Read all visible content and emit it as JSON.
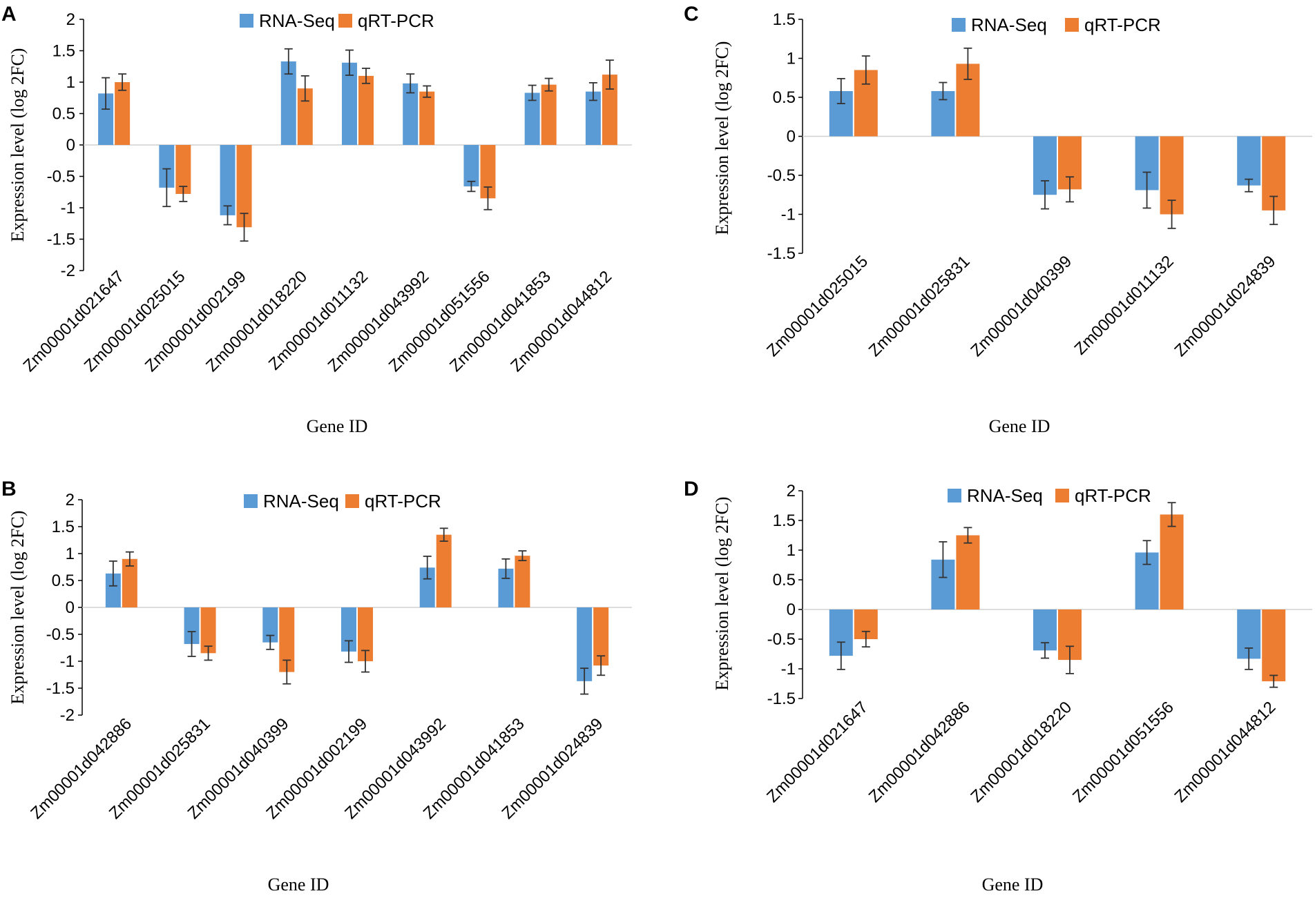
{
  "colors": {
    "rna": "#5b9bd5",
    "qrt": "#ed7d31",
    "zero_line": "#d0d0d0",
    "axis": "#000000",
    "error": "#333333"
  },
  "chart_data": [
    {
      "panel": "A",
      "type": "bar",
      "title": "",
      "xlabel": "Gene ID",
      "ylabel": "Expression level (log 2FC)",
      "ylim": [
        -2,
        2
      ],
      "yticks": [
        "2",
        "1.5",
        "1",
        "0.5",
        "0",
        "-0.5",
        "-1",
        "-1.5",
        "-2"
      ],
      "ytick_values": [
        2,
        1.5,
        1,
        0.5,
        0,
        -0.5,
        -1,
        -1.5,
        -2
      ],
      "categories": [
        "Zm00001d021647",
        "Zm00001d025015",
        "Zm00001d002199",
        "Zm00001d018220",
        "Zm00001d011132",
        "Zm00001d043992",
        "Zm00001d051556",
        "Zm00001d041853",
        "Zm00001d044812"
      ],
      "series": [
        {
          "name": "RNA-Seq",
          "values": [
            0.82,
            -0.68,
            -1.12,
            1.33,
            1.31,
            0.98,
            -0.66,
            0.83,
            0.85
          ],
          "errors": [
            0.25,
            0.3,
            0.15,
            0.2,
            0.2,
            0.15,
            0.08,
            0.12,
            0.14
          ]
        },
        {
          "name": "qRT-PCR",
          "values": [
            1.0,
            -0.78,
            -1.31,
            0.9,
            1.1,
            0.85,
            -0.85,
            0.96,
            1.12
          ],
          "errors": [
            0.13,
            0.12,
            0.22,
            0.2,
            0.12,
            0.09,
            0.18,
            0.1,
            0.23
          ]
        }
      ]
    },
    {
      "panel": "B",
      "type": "bar",
      "title": "",
      "xlabel": "Gene ID",
      "ylabel": "Expression level (log 2FC)",
      "ylim": [
        -2,
        2
      ],
      "yticks": [
        "2",
        "1.5",
        "1",
        "0.5",
        "0",
        "-0.5",
        "-1",
        "-1.5",
        "-2"
      ],
      "ytick_values": [
        2,
        1.5,
        1,
        0.5,
        0,
        -0.5,
        -1,
        -1.5,
        -2
      ],
      "categories": [
        "Zm00001d042886",
        "Zm00001d025831",
        "Zm00001d040399",
        "Zm00001d002199",
        "Zm00001d043992",
        "Zm00001d041853",
        "Zm00001d024839"
      ],
      "series": [
        {
          "name": "RNA-Seq",
          "values": [
            0.63,
            -0.68,
            -0.65,
            -0.82,
            0.74,
            0.72,
            -1.37
          ],
          "errors": [
            0.23,
            0.23,
            0.13,
            0.2,
            0.21,
            0.18,
            0.24
          ]
        },
        {
          "name": "qRT-PCR",
          "values": [
            0.9,
            -0.85,
            -1.2,
            -1.0,
            1.35,
            0.96,
            -1.08
          ],
          "errors": [
            0.13,
            0.13,
            0.22,
            0.2,
            0.12,
            0.09,
            0.18
          ]
        }
      ]
    },
    {
      "panel": "C",
      "type": "bar",
      "title": "",
      "xlabel": "Gene ID",
      "ylabel": "Expression level (log 2FC)",
      "ylim": [
        -1.5,
        1.5
      ],
      "yticks": [
        "1.5",
        "1",
        "0.5",
        "0",
        "-0.5",
        "-1",
        "-1.5"
      ],
      "ytick_values": [
        1.5,
        1,
        0.5,
        0,
        -0.5,
        -1,
        -1.5
      ],
      "categories": [
        "Zm00001d025015",
        "Zm00001d025831",
        "Zm00001d040399",
        "Zm00001d011132",
        "Zm00001d024839"
      ],
      "series": [
        {
          "name": "RNA-Seq",
          "values": [
            0.58,
            0.58,
            -0.75,
            -0.69,
            -0.63
          ],
          "errors": [
            0.16,
            0.11,
            0.18,
            0.23,
            0.08
          ]
        },
        {
          "name": "qRT-PCR",
          "values": [
            0.85,
            0.93,
            -0.68,
            -1.0,
            -0.95
          ],
          "errors": [
            0.18,
            0.2,
            0.16,
            0.18,
            0.18
          ]
        }
      ]
    },
    {
      "panel": "D",
      "type": "bar",
      "title": "",
      "xlabel": "Gene ID",
      "ylabel": "Expression level (log 2FC)",
      "ylim": [
        -1.5,
        2
      ],
      "yticks": [
        "2",
        "1.5",
        "1",
        "0.5",
        "0",
        "-0.5",
        "-1",
        "-1.5"
      ],
      "ytick_values": [
        2,
        1.5,
        1,
        0.5,
        0,
        -0.5,
        -1,
        -1.5
      ],
      "categories": [
        "Zm00001d021647",
        "Zm00001d042886",
        "Zm00001d018220",
        "Zm00001d051556",
        "Zm00001d044812"
      ],
      "series": [
        {
          "name": "RNA-Seq",
          "values": [
            -0.78,
            0.84,
            -0.69,
            0.96,
            -0.83
          ],
          "errors": [
            0.23,
            0.3,
            0.13,
            0.2,
            0.18
          ]
        },
        {
          "name": "qRT-PCR",
          "values": [
            -0.5,
            1.25,
            -0.85,
            1.6,
            -1.21
          ],
          "errors": [
            0.13,
            0.13,
            0.23,
            0.2,
            0.1
          ]
        }
      ]
    }
  ]
}
